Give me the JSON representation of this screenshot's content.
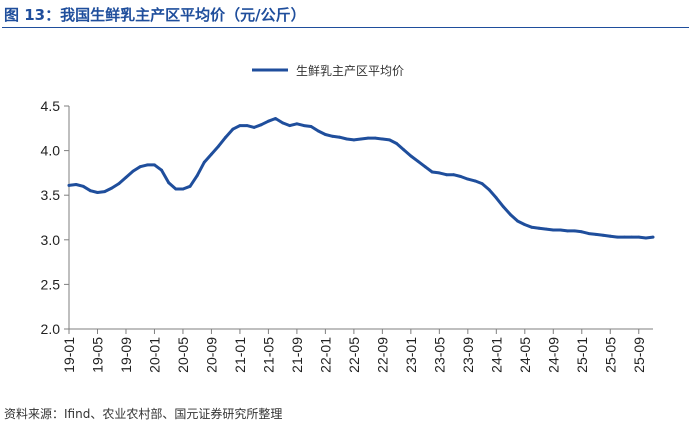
{
  "figure": {
    "title": "图 13：我国生鲜乳主产区平均价（元/公斤）",
    "source": "资料来源：Ifind、农业农村部、国元证券研究所整理"
  },
  "colors": {
    "accent": "#1f4e9c",
    "line": "#1f4e9c",
    "axis": "#7f7f7f",
    "text": "#222222"
  },
  "chart_data": {
    "type": "line",
    "title": "",
    "xlabel": "",
    "ylabel": "",
    "ylim": [
      2.0,
      4.5
    ],
    "yticks": [
      "2.0",
      "2.5",
      "3.0",
      "3.5",
      "4.0",
      "4.5"
    ],
    "xticks": [
      "19-01",
      "19-05",
      "19-09",
      "20-01",
      "20-05",
      "20-09",
      "21-01",
      "21-05",
      "21-09",
      "22-01",
      "22-05",
      "22-09",
      "23-01",
      "23-05",
      "23-09",
      "24-01",
      "24-05",
      "24-09",
      "25-01",
      "25-05",
      "25-09"
    ],
    "grid": false,
    "legend_position": "top-center",
    "series": [
      {
        "name": "生鲜乳主产区平均价",
        "x": [
          "2019-01",
          "2019-02",
          "2019-03",
          "2019-04",
          "2019-05",
          "2019-06",
          "2019-07",
          "2019-08",
          "2019-09",
          "2019-10",
          "2019-11",
          "2019-12",
          "2020-01",
          "2020-02",
          "2020-03",
          "2020-04",
          "2020-05",
          "2020-06",
          "2020-07",
          "2020-08",
          "2020-09",
          "2020-10",
          "2020-11",
          "2020-12",
          "2021-01",
          "2021-02",
          "2021-03",
          "2021-04",
          "2021-05",
          "2021-06",
          "2021-07",
          "2021-08",
          "2021-09",
          "2021-10",
          "2021-11",
          "2021-12",
          "2022-01",
          "2022-02",
          "2022-03",
          "2022-04",
          "2022-05",
          "2022-06",
          "2022-07",
          "2022-08",
          "2022-09",
          "2022-10",
          "2022-11",
          "2022-12",
          "2023-01",
          "2023-02",
          "2023-03",
          "2023-04",
          "2023-05",
          "2023-06",
          "2023-07",
          "2023-08",
          "2023-09",
          "2023-10",
          "2023-11",
          "2023-12",
          "2024-01",
          "2024-02",
          "2024-03",
          "2024-04",
          "2024-05",
          "2024-06",
          "2024-07",
          "2024-08",
          "2024-09",
          "2024-10",
          "2024-11",
          "2024-12",
          "2025-01",
          "2025-02",
          "2025-03",
          "2025-04",
          "2025-05",
          "2025-06",
          "2025-07",
          "2025-08",
          "2025-09",
          "2025-10",
          "2025-11"
        ],
        "values": [
          3.61,
          3.62,
          3.6,
          3.55,
          3.53,
          3.54,
          3.58,
          3.63,
          3.7,
          3.77,
          3.82,
          3.84,
          3.84,
          3.78,
          3.64,
          3.57,
          3.57,
          3.6,
          3.72,
          3.87,
          3.96,
          4.05,
          4.15,
          4.24,
          4.28,
          4.28,
          4.26,
          4.29,
          4.33,
          4.36,
          4.31,
          4.28,
          4.3,
          4.28,
          4.27,
          4.22,
          4.18,
          4.16,
          4.15,
          4.13,
          4.12,
          4.13,
          4.14,
          4.14,
          4.13,
          4.12,
          4.08,
          4.01,
          3.94,
          3.88,
          3.82,
          3.76,
          3.75,
          3.73,
          3.73,
          3.71,
          3.68,
          3.66,
          3.63,
          3.56,
          3.47,
          3.37,
          3.28,
          3.21,
          3.17,
          3.14,
          3.13,
          3.12,
          3.11,
          3.11,
          3.1,
          3.1,
          3.09,
          3.07,
          3.06,
          3.05,
          3.04,
          3.03,
          3.03,
          3.03,
          3.03,
          3.02,
          3.03
        ]
      }
    ]
  }
}
